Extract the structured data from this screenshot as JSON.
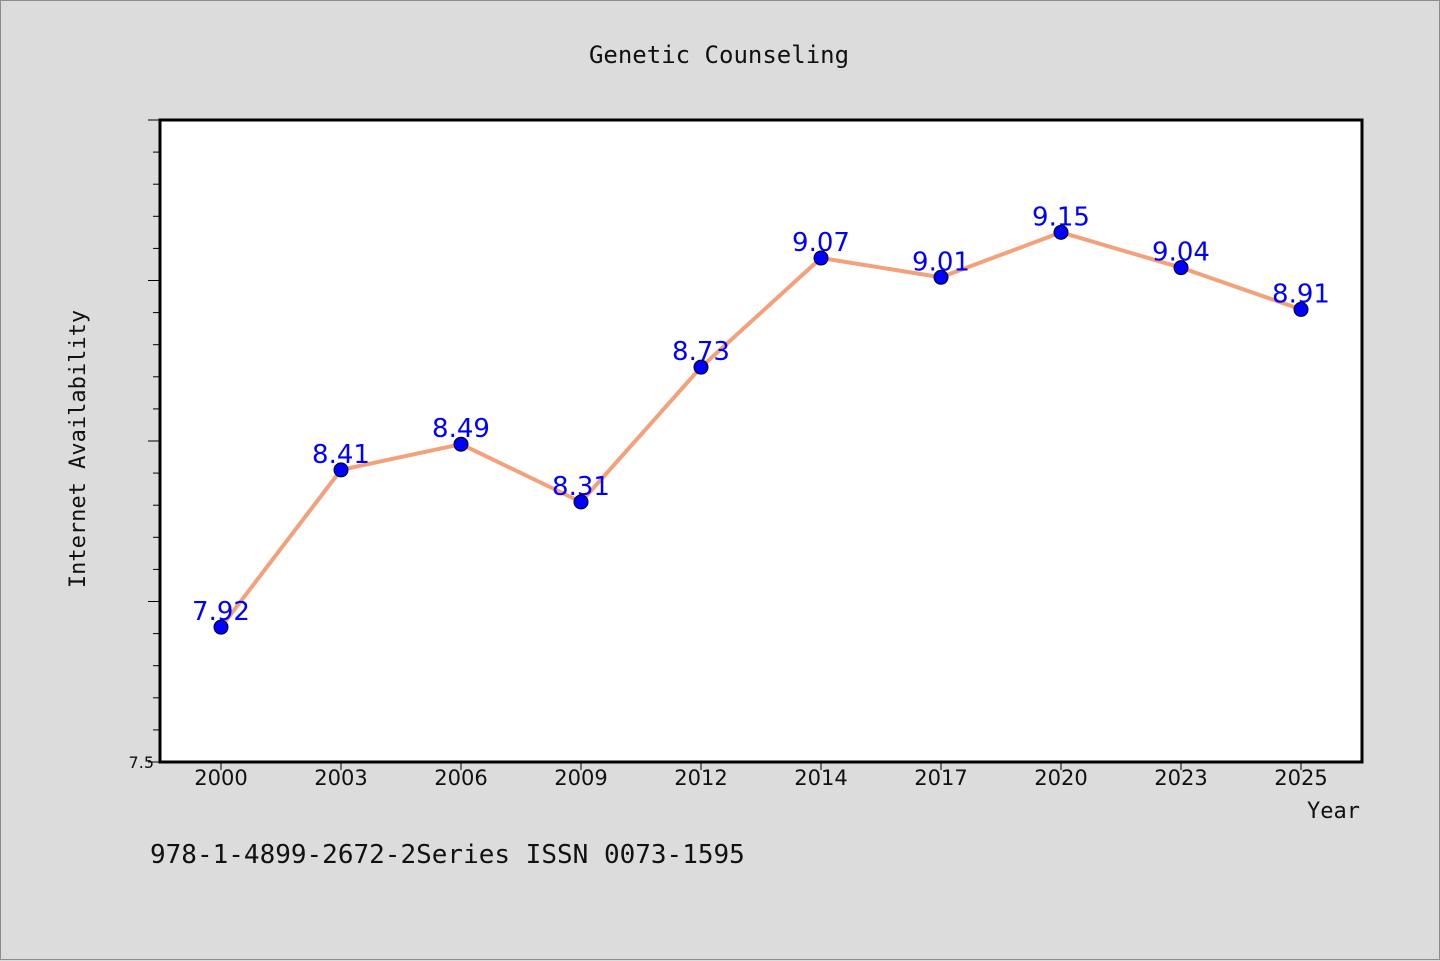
{
  "footer": {
    "text": "978-1-4899-2672-2Series ISSN 0073-1595"
  },
  "colors": {
    "line": "#f4a07a",
    "marker": "#0000ff",
    "label": "#0000ff",
    "background": "#dcdcdc",
    "plot": "#ffffff"
  },
  "chart_data": {
    "type": "line",
    "title": "Genetic Counseling",
    "xlabel": "Year",
    "ylabel": "Internet Availability",
    "categories": [
      "2000",
      "2003",
      "2006",
      "2009",
      "2012",
      "2014",
      "2017",
      "2020",
      "2023",
      "2025"
    ],
    "series": [
      {
        "values": [
          7.92,
          8.41,
          8.49,
          8.31,
          8.73,
          9.07,
          9.01,
          9.15,
          9.04,
          8.91
        ]
      }
    ],
    "ylim": [
      7.5,
      9.5
    ],
    "y_minor_step": 0.1,
    "y_major_step": 0.5,
    "yticks_labeled": [
      "7.5"
    ],
    "grid": false,
    "legend": "none"
  }
}
